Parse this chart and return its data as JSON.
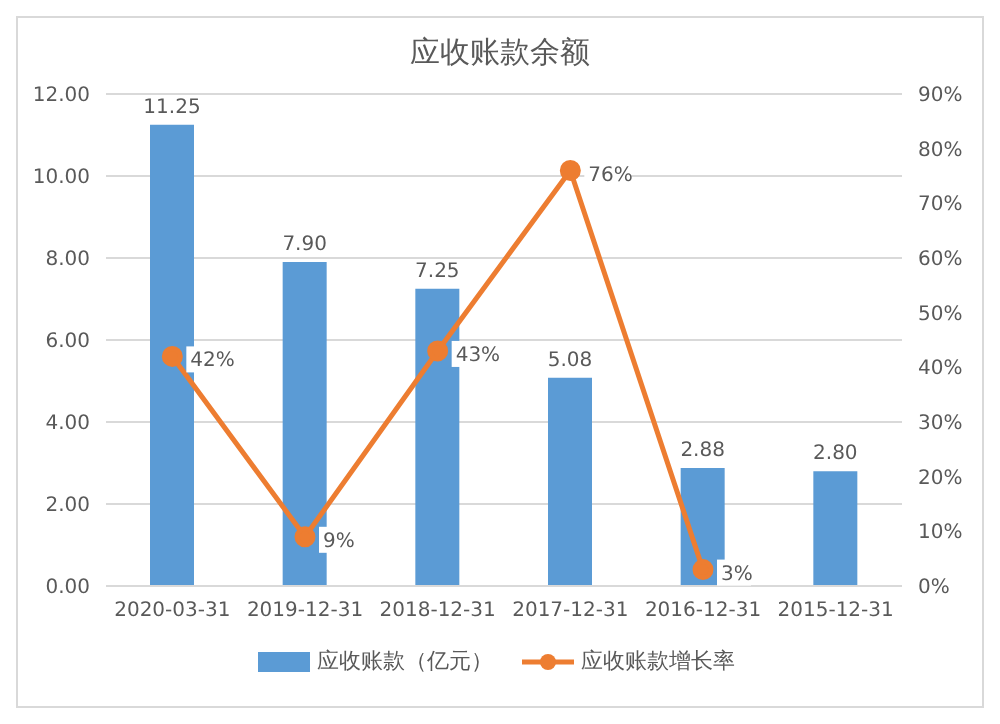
{
  "chart_data": {
    "type": "bar",
    "title": "应收账款余额",
    "categories": [
      "2020-03-31",
      "2019-12-31",
      "2018-12-31",
      "2017-12-31",
      "2016-12-31",
      "2015-12-31"
    ],
    "series": [
      {
        "name": "应收账款（亿元）",
        "color": "#5b9bd5",
        "values": [
          11.25,
          7.9,
          7.25,
          5.08,
          2.88,
          2.8
        ],
        "value_labels": [
          "11.25",
          "7.90",
          "7.25",
          "5.08",
          "2.88",
          "2.80"
        ]
      },
      {
        "name": "应收账款增长率",
        "type": "line",
        "axis": "y2",
        "color": "#ed7d31",
        "values": [
          42,
          9,
          43,
          76,
          3,
          null
        ],
        "value_labels": [
          "42%",
          "9%",
          "43%",
          "76%",
          "3%",
          null
        ]
      }
    ],
    "ylim": [
      0,
      12
    ],
    "yticks": [
      {
        "value": 0,
        "label": "0.00"
      },
      {
        "value": 2,
        "label": "2.00"
      },
      {
        "value": 4,
        "label": "4.00"
      },
      {
        "value": 6,
        "label": "6.00"
      },
      {
        "value": 8,
        "label": "8.00"
      },
      {
        "value": 10,
        "label": "10.00"
      },
      {
        "value": 12,
        "label": "12.00"
      }
    ],
    "y2lim": [
      0,
      90
    ],
    "y2ticks": [
      {
        "value": 0,
        "label": "0%"
      },
      {
        "value": 10,
        "label": "10%"
      },
      {
        "value": 20,
        "label": "20%"
      },
      {
        "value": 30,
        "label": "30%"
      },
      {
        "value": 40,
        "label": "40%"
      },
      {
        "value": 50,
        "label": "50%"
      },
      {
        "value": 60,
        "label": "60%"
      },
      {
        "value": 70,
        "label": "70%"
      },
      {
        "value": 80,
        "label": "80%"
      },
      {
        "value": 90,
        "label": "90%"
      }
    ],
    "grid": "y",
    "legend": "bottom",
    "marker": "circle",
    "line_style": "solid"
  }
}
